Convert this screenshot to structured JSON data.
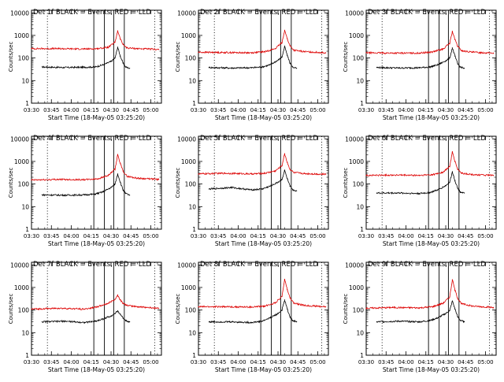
{
  "figure": {
    "x_axis_ticks": [
      "03:30",
      "03:45",
      "04:00",
      "04:15",
      "04:30",
      "04:45",
      "05:00"
    ],
    "y_axis_ticks": [
      "1",
      "10",
      "100",
      "1000",
      "10000"
    ],
    "ylabel": "Counts/sec",
    "xlabel": "Start Time (18-May-05 03:25:20)",
    "colors": {
      "events": "#000000",
      "lld": "#dd0000",
      "frame": "#000000"
    }
  },
  "chart_data": [
    {
      "type": "line",
      "title": "Det 1f BLACK = Events, RED = LLD",
      "xlabel": "Start Time (18-May-05 03:25:20)",
      "ylabel": "Counts/sec",
      "yscale": "log",
      "ylim": [
        1,
        13000
      ],
      "xlim": [
        "03:30",
        "05:08"
      ],
      "x_ticks": [
        "03:30",
        "03:45",
        "04:00",
        "04:15",
        "04:30",
        "04:45",
        "05:00"
      ],
      "y_ticks": [
        1,
        10,
        100,
        1000,
        10000
      ],
      "series": [
        {
          "color": "#000000",
          "x": [
            "03:38",
            "03:55",
            "04:10",
            "04:18",
            "04:24",
            "04:30",
            "04:33",
            "04:35",
            "04:37",
            "04:39",
            "04:41",
            "04:44"
          ],
          "values": [
            40,
            38,
            39,
            40,
            50,
            70,
            100,
            300,
            120,
            60,
            40,
            35
          ]
        },
        {
          "color": "#dd0000",
          "x": [
            "03:30",
            "03:50",
            "04:10",
            "04:20",
            "04:28",
            "04:33",
            "04:35",
            "04:37",
            "04:39",
            "04:42",
            "04:50",
            "05:06"
          ],
          "values": [
            260,
            260,
            250,
            260,
            300,
            500,
            1600,
            700,
            400,
            280,
            260,
            240
          ]
        }
      ],
      "vertical_markers": [
        "03:42",
        "04:17",
        "04:25",
        "04:32",
        "04:40",
        "05:03"
      ],
      "solid_markers": [
        "04:17",
        "04:25",
        "04:32",
        "04:40"
      ],
      "dotted_markers": [
        "03:42",
        "05:03"
      ]
    },
    {
      "type": "line",
      "title": "Det 2f BLACK = Events, RED = LLD",
      "xlabel": "Start Time (18-May-05 03:25:20)",
      "ylabel": "Counts/sec",
      "yscale": "log",
      "ylim": [
        1,
        13000
      ],
      "xlim": [
        "03:30",
        "05:08"
      ],
      "x_ticks": [
        "03:30",
        "03:45",
        "04:00",
        "04:15",
        "04:30",
        "04:45",
        "05:00"
      ],
      "y_ticks": [
        1,
        10,
        100,
        1000,
        10000
      ],
      "series": [
        {
          "color": "#000000",
          "x": [
            "03:38",
            "03:55",
            "04:10",
            "04:18",
            "04:24",
            "04:30",
            "04:33",
            "04:35",
            "04:37",
            "04:39",
            "04:41",
            "04:44"
          ],
          "values": [
            38,
            36,
            37,
            40,
            50,
            80,
            110,
            320,
            130,
            60,
            40,
            35
          ]
        },
        {
          "color": "#dd0000",
          "x": [
            "03:30",
            "03:50",
            "04:10",
            "04:20",
            "04:28",
            "04:33",
            "04:35",
            "04:37",
            "04:39",
            "04:42",
            "04:50",
            "05:06"
          ],
          "values": [
            180,
            175,
            170,
            190,
            260,
            480,
            1700,
            700,
            350,
            220,
            190,
            170
          ]
        }
      ],
      "vertical_markers": [
        "03:42",
        "04:17",
        "04:25",
        "04:32",
        "04:40",
        "05:03"
      ],
      "solid_markers": [
        "04:17",
        "04:25",
        "04:32",
        "04:40"
      ],
      "dotted_markers": [
        "03:42",
        "05:03"
      ]
    },
    {
      "type": "line",
      "title": "Det 3f BLACK = Events, RED = LLD",
      "xlabel": "Start Time (18-May-05 03:25:20)",
      "ylabel": "Counts/sec",
      "yscale": "log",
      "ylim": [
        1,
        13000
      ],
      "xlim": [
        "03:30",
        "05:08"
      ],
      "x_ticks": [
        "03:30",
        "03:45",
        "04:00",
        "04:15",
        "04:30",
        "04:45",
        "05:00"
      ],
      "y_ticks": [
        1,
        10,
        100,
        1000,
        10000
      ],
      "series": [
        {
          "color": "#000000",
          "x": [
            "03:38",
            "03:55",
            "04:10",
            "04:18",
            "04:24",
            "04:30",
            "04:33",
            "04:35",
            "04:37",
            "04:39",
            "04:41",
            "04:44"
          ],
          "values": [
            38,
            36,
            37,
            40,
            50,
            75,
            100,
            280,
            120,
            55,
            40,
            35
          ]
        },
        {
          "color": "#dd0000",
          "x": [
            "03:30",
            "03:50",
            "04:10",
            "04:20",
            "04:28",
            "04:33",
            "04:35",
            "04:37",
            "04:39",
            "04:42",
            "04:50",
            "05:06"
          ],
          "values": [
            170,
            165,
            165,
            185,
            250,
            450,
            1500,
            650,
            330,
            210,
            180,
            165
          ]
        }
      ],
      "vertical_markers": [
        "03:42",
        "04:17",
        "04:25",
        "04:32",
        "04:40",
        "05:03"
      ],
      "solid_markers": [
        "04:17",
        "04:25",
        "04:32",
        "04:40"
      ],
      "dotted_markers": [
        "03:42",
        "05:03"
      ]
    },
    {
      "type": "line",
      "title": "Det 4f BLACK = Events, RED = LLD",
      "xlabel": "Start Time (18-May-05 03:25:20)",
      "ylabel": "Counts/sec",
      "yscale": "log",
      "ylim": [
        1,
        13000
      ],
      "xlim": [
        "03:30",
        "05:08"
      ],
      "x_ticks": [
        "03:30",
        "03:45",
        "04:00",
        "04:15",
        "04:30",
        "04:45",
        "05:00"
      ],
      "y_ticks": [
        1,
        10,
        100,
        1000,
        10000
      ],
      "series": [
        {
          "color": "#000000",
          "x": [
            "03:38",
            "03:55",
            "04:10",
            "04:18",
            "04:24",
            "04:30",
            "04:33",
            "04:35",
            "04:37",
            "04:39",
            "04:41",
            "04:44"
          ],
          "values": [
            33,
            32,
            33,
            36,
            45,
            70,
            100,
            280,
            120,
            55,
            38,
            32
          ]
        },
        {
          "color": "#dd0000",
          "x": [
            "03:30",
            "03:50",
            "04:10",
            "04:20",
            "04:28",
            "04:33",
            "04:35",
            "04:37",
            "04:39",
            "04:42",
            "04:50",
            "05:06"
          ],
          "values": [
            150,
            160,
            155,
            170,
            240,
            450,
            2000,
            800,
            380,
            220,
            180,
            160
          ]
        }
      ],
      "vertical_markers": [
        "03:42",
        "04:17",
        "04:25",
        "04:32",
        "04:40",
        "05:03"
      ],
      "solid_markers": [
        "04:17",
        "04:25",
        "04:32",
        "04:40"
      ],
      "dotted_markers": [
        "03:42",
        "05:03"
      ]
    },
    {
      "type": "line",
      "title": "Det 5f BLACK = Events, RED = LLD",
      "xlabel": "Start Time (18-May-05 03:25:20)",
      "ylabel": "Counts/sec",
      "yscale": "log",
      "ylim": [
        1,
        13000
      ],
      "xlim": [
        "03:30",
        "05:08"
      ],
      "x_ticks": [
        "03:30",
        "03:45",
        "04:00",
        "04:15",
        "04:30",
        "04:45",
        "05:00"
      ],
      "y_ticks": [
        1,
        10,
        100,
        1000,
        10000
      ],
      "series": [
        {
          "color": "#000000",
          "x": [
            "03:38",
            "03:55",
            "04:10",
            "04:18",
            "04:24",
            "04:30",
            "04:33",
            "04:35",
            "04:37",
            "04:39",
            "04:41",
            "04:44"
          ],
          "values": [
            60,
            70,
            55,
            60,
            80,
            120,
            160,
            400,
            170,
            80,
            55,
            50
          ]
        },
        {
          "color": "#dd0000",
          "x": [
            "03:30",
            "03:50",
            "04:10",
            "04:20",
            "04:28",
            "04:33",
            "04:35",
            "04:37",
            "04:39",
            "04:42",
            "04:50",
            "05:06"
          ],
          "values": [
            280,
            300,
            280,
            300,
            380,
            650,
            2200,
            900,
            450,
            320,
            290,
            270
          ]
        }
      ],
      "vertical_markers": [
        "03:42",
        "04:17",
        "04:25",
        "04:32",
        "04:40",
        "05:03"
      ],
      "solid_markers": [
        "04:17",
        "04:25",
        "04:32",
        "04:40"
      ],
      "dotted_markers": [
        "03:42",
        "05:03"
      ]
    },
    {
      "type": "line",
      "title": "Det 6f BLACK = Events, RED = LLD",
      "xlabel": "Start Time (18-May-05 03:25:20)",
      "ylabel": "Counts/sec",
      "yscale": "log",
      "ylim": [
        1,
        13000
      ],
      "xlim": [
        "03:30",
        "05:08"
      ],
      "x_ticks": [
        "03:30",
        "03:45",
        "04:00",
        "04:15",
        "04:30",
        "04:45",
        "05:00"
      ],
      "y_ticks": [
        1,
        10,
        100,
        1000,
        10000
      ],
      "series": [
        {
          "color": "#000000",
          "x": [
            "03:38",
            "03:55",
            "04:10",
            "04:18",
            "04:24",
            "04:30",
            "04:33",
            "04:35",
            "04:37",
            "04:39",
            "04:41",
            "04:44"
          ],
          "values": [
            40,
            40,
            38,
            42,
            55,
            85,
            120,
            350,
            140,
            65,
            45,
            40
          ]
        },
        {
          "color": "#dd0000",
          "x": [
            "03:30",
            "03:50",
            "04:10",
            "04:20",
            "04:28",
            "04:33",
            "04:35",
            "04:37",
            "04:39",
            "04:42",
            "04:50",
            "05:06"
          ],
          "values": [
            240,
            250,
            240,
            260,
            330,
            600,
            2600,
            1000,
            450,
            300,
            260,
            240
          ]
        }
      ],
      "vertical_markers": [
        "03:42",
        "04:17",
        "04:25",
        "04:32",
        "04:40",
        "05:03"
      ],
      "solid_markers": [
        "04:17",
        "04:25",
        "04:32",
        "04:40"
      ],
      "dotted_markers": [
        "03:42",
        "05:03"
      ]
    },
    {
      "type": "line",
      "title": "Det 7f BLACK = Events, RED = LLD",
      "xlabel": "Start Time (18-May-05 03:25:20)",
      "ylabel": "Counts/sec",
      "yscale": "log",
      "ylim": [
        1,
        13000
      ],
      "xlim": [
        "03:30",
        "05:08"
      ],
      "x_ticks": [
        "03:30",
        "03:45",
        "04:00",
        "04:15",
        "04:30",
        "04:45",
        "05:00"
      ],
      "y_ticks": [
        1,
        10,
        100,
        1000,
        10000
      ],
      "series": [
        {
          "color": "#000000",
          "x": [
            "03:38",
            "03:55",
            "04:10",
            "04:18",
            "04:24",
            "04:30",
            "04:33",
            "04:35",
            "04:37",
            "04:39",
            "04:41",
            "04:44"
          ],
          "values": [
            30,
            32,
            28,
            32,
            40,
            55,
            70,
            90,
            65,
            45,
            35,
            30
          ]
        },
        {
          "color": "#dd0000",
          "x": [
            "03:30",
            "03:50",
            "04:10",
            "04:20",
            "04:28",
            "04:33",
            "04:35",
            "04:37",
            "04:39",
            "04:42",
            "04:50",
            "05:06"
          ],
          "values": [
            110,
            120,
            110,
            140,
            200,
            300,
            450,
            280,
            200,
            160,
            140,
            120
          ]
        }
      ],
      "vertical_markers": [
        "03:42",
        "04:17",
        "04:25",
        "04:32",
        "04:40",
        "05:03"
      ],
      "solid_markers": [
        "04:17",
        "04:25",
        "04:32",
        "04:40"
      ],
      "dotted_markers": [
        "03:42",
        "05:03"
      ]
    },
    {
      "type": "line",
      "title": "Det 8f BLACK = Events, RED = LLD",
      "xlabel": "Start Time (18-May-05 03:25:20)",
      "ylabel": "Counts/sec",
      "yscale": "log",
      "ylim": [
        1,
        13000
      ],
      "xlim": [
        "03:30",
        "05:08"
      ],
      "x_ticks": [
        "03:30",
        "03:45",
        "04:00",
        "04:15",
        "04:30",
        "04:45",
        "05:00"
      ],
      "y_ticks": [
        1,
        10,
        100,
        1000,
        10000
      ],
      "series": [
        {
          "color": "#000000",
          "x": [
            "03:38",
            "03:55",
            "04:10",
            "04:18",
            "04:24",
            "04:30",
            "04:33",
            "04:35",
            "04:37",
            "04:39",
            "04:41",
            "04:44"
          ],
          "values": [
            30,
            30,
            28,
            32,
            45,
            70,
            100,
            280,
            110,
            50,
            35,
            30
          ]
        },
        {
          "color": "#dd0000",
          "x": [
            "03:30",
            "03:50",
            "04:10",
            "04:20",
            "04:28",
            "04:33",
            "04:35",
            "04:37",
            "04:39",
            "04:42",
            "04:50",
            "05:06"
          ],
          "values": [
            140,
            140,
            135,
            150,
            210,
            400,
            2300,
            800,
            350,
            200,
            160,
            140
          ]
        }
      ],
      "vertical_markers": [
        "03:42",
        "04:17",
        "04:25",
        "04:32",
        "04:40",
        "05:03"
      ],
      "solid_markers": [
        "04:17",
        "04:25",
        "04:32",
        "04:40"
      ],
      "dotted_markers": [
        "03:42",
        "05:03"
      ]
    },
    {
      "type": "line",
      "title": "Det 9f BLACK = Events, RED = LLD",
      "xlabel": "Start Time (18-May-05 03:25:20)",
      "ylabel": "Counts/sec",
      "yscale": "log",
      "ylim": [
        1,
        13000
      ],
      "xlim": [
        "03:30",
        "05:08"
      ],
      "x_ticks": [
        "03:30",
        "03:45",
        "04:00",
        "04:15",
        "04:30",
        "04:45",
        "05:00"
      ],
      "y_ticks": [
        1,
        10,
        100,
        1000,
        10000
      ],
      "series": [
        {
          "color": "#000000",
          "x": [
            "03:38",
            "03:55",
            "04:10",
            "04:18",
            "04:24",
            "04:30",
            "04:33",
            "04:35",
            "04:37",
            "04:39",
            "04:41",
            "04:44"
          ],
          "values": [
            30,
            32,
            30,
            34,
            45,
            70,
            95,
            250,
            110,
            50,
            35,
            30
          ]
        },
        {
          "color": "#dd0000",
          "x": [
            "03:30",
            "03:50",
            "04:10",
            "04:20",
            "04:28",
            "04:33",
            "04:35",
            "04:37",
            "04:39",
            "04:42",
            "04:50",
            "05:06"
          ],
          "values": [
            120,
            130,
            125,
            140,
            200,
            380,
            2200,
            750,
            330,
            190,
            150,
            130
          ]
        }
      ],
      "vertical_markers": [
        "03:42",
        "04:17",
        "04:25",
        "04:32",
        "04:40",
        "05:03"
      ],
      "solid_markers": [
        "04:17",
        "04:25",
        "04:32",
        "04:40"
      ],
      "dotted_markers": [
        "03:42",
        "05:03"
      ]
    }
  ]
}
